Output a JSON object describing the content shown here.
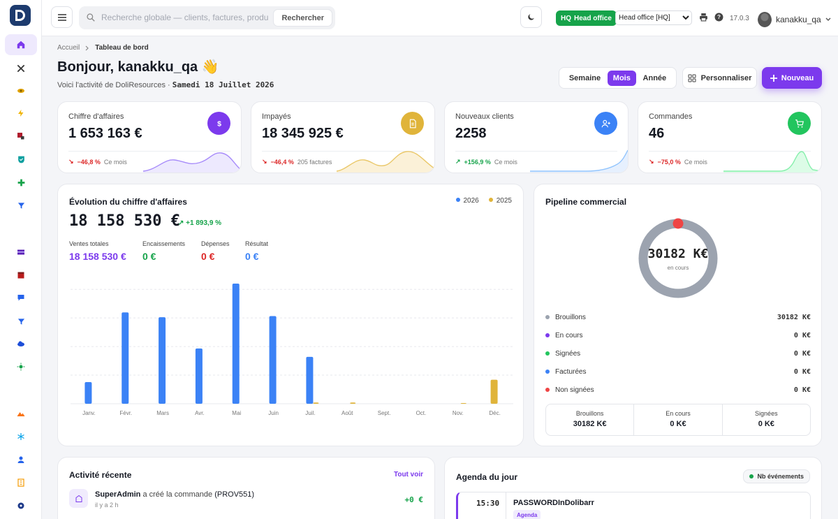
{
  "colors": {
    "accent": "#7c3aed",
    "success": "#16a34a",
    "danger": "#dc2626",
    "warning": "#e0b43a",
    "info": "#3b82f6"
  },
  "topbar": {
    "search_placeholder": "Recherche globale — clients, factures, produits...",
    "search_button": "Rechercher",
    "entity_badge_code": "HQ",
    "entity_badge_label": "Head office",
    "entity_select_value": "Head office [HQ]",
    "version": "17.0.3",
    "user_name": "kanakku_qa"
  },
  "header": {
    "breadcrumb_home": "Accueil",
    "breadcrumb_current": "Tableau de bord",
    "greeting": "Bonjour, kanakku_qa",
    "greeting_emoji": "👋",
    "subtitle_prefix": "Voici l'activité de DoliResources · ",
    "subtitle_date": "Samedi 18 Juillet 2026",
    "period_week": "Semaine",
    "period_month": "Mois",
    "period_year": "Année",
    "customize": "Personnaliser",
    "new": "Nouveau"
  },
  "kpis": [
    {
      "label": "Chiffre d'affaires",
      "value": "1 653 163 €",
      "delta": "−46,8 %",
      "note": "Ce mois",
      "trend": "down",
      "icon": "dollar-icon",
      "color": "#7c3aed"
    },
    {
      "label": "Impayés",
      "value": "18 345 925 €",
      "delta": "−46,4 %",
      "note": "205 factures",
      "trend": "down",
      "icon": "invoice-icon",
      "color": "#e0b43a"
    },
    {
      "label": "Nouveaux clients",
      "value": "2258",
      "delta": "+156,9 %",
      "note": "Ce mois",
      "trend": "up",
      "icon": "user-plus-icon",
      "color": "#3b82f6"
    },
    {
      "label": "Commandes",
      "value": "46",
      "delta": "−75,0 %",
      "note": "Ce mois",
      "trend": "down",
      "icon": "cart-icon",
      "color": "#22c55e"
    }
  ],
  "revenue": {
    "title": "Évolution du chiffre d'affaires",
    "total": "18 158 530 €",
    "growth": "+1 893,9 %",
    "stats": [
      {
        "label": "Ventes totales",
        "value": "18 158 530 €",
        "color": "#7c3aed"
      },
      {
        "label": "Encaissements",
        "value": "0 €",
        "color": "#16a34a"
      },
      {
        "label": "Dépenses",
        "value": "0 €",
        "color": "#dc2626"
      },
      {
        "label": "Résultat",
        "value": "0 €",
        "color": "#3b82f6"
      }
    ]
  },
  "chart_data": {
    "type": "bar",
    "categories": [
      "Janv.",
      "Févr.",
      "Mars",
      "Avr.",
      "Mai",
      "Juin",
      "Juil.",
      "Août",
      "Sept.",
      "Oct.",
      "Nov.",
      "Déc."
    ],
    "series": [
      {
        "name": "2026",
        "color": "#3b82f6",
        "values": [
          0.18,
          0.76,
          0.72,
          0.46,
          1.0,
          0.73,
          0.39,
          0,
          0,
          0,
          0,
          0
        ]
      },
      {
        "name": "2025",
        "color": "#e0b43a",
        "values": [
          0,
          0,
          0,
          0,
          0,
          0,
          0.01,
          0.01,
          0,
          0,
          0.005,
          0.2
        ]
      }
    ],
    "legend": "top-right",
    "grid": true
  },
  "pipeline": {
    "title": "Pipeline commercial",
    "center_value": "30182 K€",
    "center_label": "en cours",
    "rows": [
      {
        "label": "Brouillons",
        "value": "30182 K€",
        "color": "#9ca3af"
      },
      {
        "label": "En cours",
        "value": "0 K€",
        "color": "#7c3aed"
      },
      {
        "label": "Signées",
        "value": "0 K€",
        "color": "#22c55e"
      },
      {
        "label": "Facturées",
        "value": "0 K€",
        "color": "#3b82f6"
      },
      {
        "label": "Non signées",
        "value": "0 K€",
        "color": "#ef4444"
      }
    ],
    "summary": [
      {
        "label": "Brouillons",
        "value": "30182 K€"
      },
      {
        "label": "En cours",
        "value": "0 K€"
      },
      {
        "label": "Signées",
        "value": "0 K€"
      }
    ]
  },
  "activity": {
    "title": "Activité récente",
    "see_all": "Tout voir",
    "item_user": "SuperAdmin",
    "item_action": " a créé la commande ",
    "item_ref": "(PROV551)",
    "item_time": "il y a 2 h",
    "item_amount": "+0 €"
  },
  "agenda": {
    "title": "Agenda du jour",
    "badge": "Nb événements",
    "event_time": "15:30",
    "event_title": "PASSWORDInDolibarr",
    "event_tag": "Agenda"
  }
}
